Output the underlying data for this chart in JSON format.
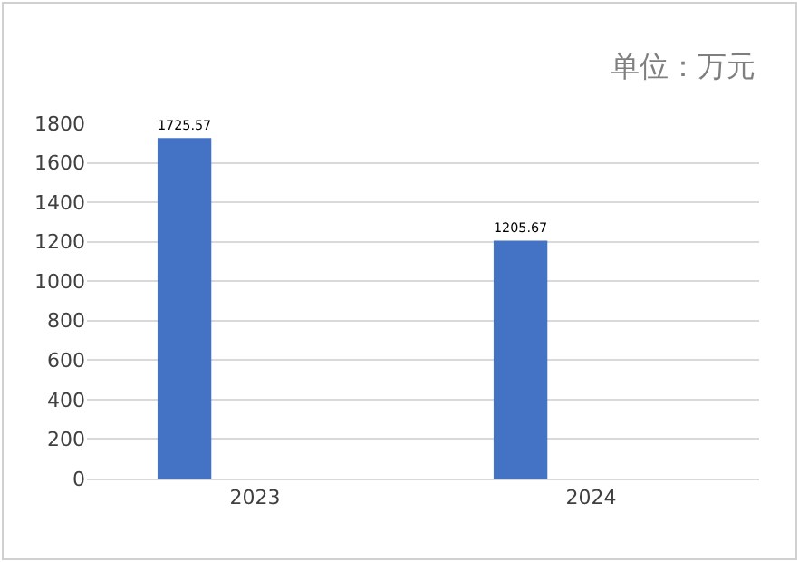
{
  "chart_data": {
    "type": "bar",
    "categories": [
      "2023",
      "2024"
    ],
    "values": [
      1725.57,
      1205.67
    ],
    "color": "#4472c4",
    "ylim": [
      0,
      1800
    ],
    "yticks": [
      0,
      200,
      400,
      600,
      800,
      1000,
      1200,
      1400,
      1600,
      1800
    ],
    "grid": "y",
    "data_labels": true,
    "annotations": [
      "单位：万元"
    ]
  }
}
